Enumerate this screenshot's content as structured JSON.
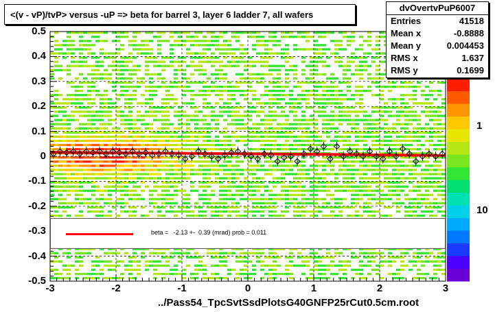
{
  "chart_data": {
    "type": "heatmap",
    "title": "<(v - vP)/tvP> versus  -uP => beta for barrel 3, layer 6 ladder 7, all wafers",
    "footer": "../Pass54_TpcSvtSsdPlotsG40GNFP25rCut0.5cm.root",
    "xlim": [
      -3,
      3
    ],
    "ylim": [
      -0.5,
      0.5
    ],
    "x_ticks": [
      "-3",
      "-2",
      "-1",
      "0",
      "1",
      "2",
      "3"
    ],
    "y_ticks": [
      "0.5",
      "0.4",
      "0.3",
      "0.2",
      "0.1",
      "0",
      "-0.1",
      "-0.2",
      "-0.3",
      "-0.4",
      "-0.5"
    ],
    "z_ticks": [
      "1",
      "10"
    ],
    "grid": true,
    "stats": {
      "name": "dvOvertvPuP6007",
      "rows": [
        {
          "label": "Entries",
          "value": "41518"
        },
        {
          "label": "Mean x",
          "value": "-0.8888"
        },
        {
          "label": "Mean y",
          "value": "0.004453"
        },
        {
          "label": "RMS x",
          "value": "1.637"
        },
        {
          "label": "RMS y",
          "value": "0.1699"
        }
      ]
    },
    "fit": {
      "text": "beta =   -2.13 +-  0.39 (mrad) prob = 0.011",
      "slope": -0.00213,
      "intercept": 0.01,
      "line_color": "#ff0000"
    },
    "profile_x": [
      -2.95,
      -2.85,
      -2.75,
      -2.65,
      -2.55,
      -2.45,
      -2.35,
      -2.25,
      -2.15,
      -2.05,
      -1.95,
      -1.85,
      -1.75,
      -1.65,
      -1.55,
      -1.45,
      -1.35,
      -1.25,
      -1.15,
      -1.05,
      -0.95,
      -0.85,
      -0.75,
      -0.65,
      -0.55,
      -0.45,
      -0.35,
      -0.25,
      -0.15,
      -0.05,
      0.05,
      0.15,
      0.25,
      0.35,
      0.45,
      0.55,
      0.65,
      0.75,
      0.85,
      0.95,
      1.05,
      1.15,
      1.25,
      1.35,
      1.45,
      1.55,
      1.65,
      1.75,
      1.85,
      1.95,
      2.05,
      2.15,
      2.25,
      2.35,
      2.45,
      2.55,
      2.65,
      2.75,
      2.85,
      2.95
    ],
    "profile_y": [
      0.01,
      0.02,
      0.015,
      0.02,
      0.01,
      0.02,
      0.015,
      0.02,
      0.01,
      0.02,
      0.015,
      0.01,
      0.02,
      0.01,
      0.015,
      0.005,
      0.01,
      0.02,
      0.01,
      0.005,
      -0.01,
      0.0,
      0.02,
      0.01,
      0.0,
      -0.01,
      0.005,
      0.015,
      0.02,
      0.01,
      0.0,
      -0.01,
      0.01,
      0.005,
      -0.02,
      -0.005,
      0.0,
      -0.02,
      0.01,
      0.03,
      0.02,
      0.04,
      -0.01,
      0.04,
      0.0,
      0.02,
      0.01,
      0.0,
      0.02,
      0.0,
      -0.01,
      0.02,
      0.0,
      0.03,
      0.01,
      -0.02,
      0.0,
      0.01,
      0.0,
      0.01
    ],
    "palette": [
      "#6b00d6",
      "#4b00ff",
      "#1a3cff",
      "#0078ff",
      "#00aaff",
      "#00d0e8",
      "#00e0b0",
      "#00e070",
      "#33e633",
      "#7ae620",
      "#b7e615",
      "#e6e600",
      "#ffc800",
      "#ff9600",
      "#ff5a00",
      "#ff1e00"
    ],
    "colors": {
      "fit": "#ff0000",
      "marker": "#000000",
      "grid": "#000000"
    }
  }
}
